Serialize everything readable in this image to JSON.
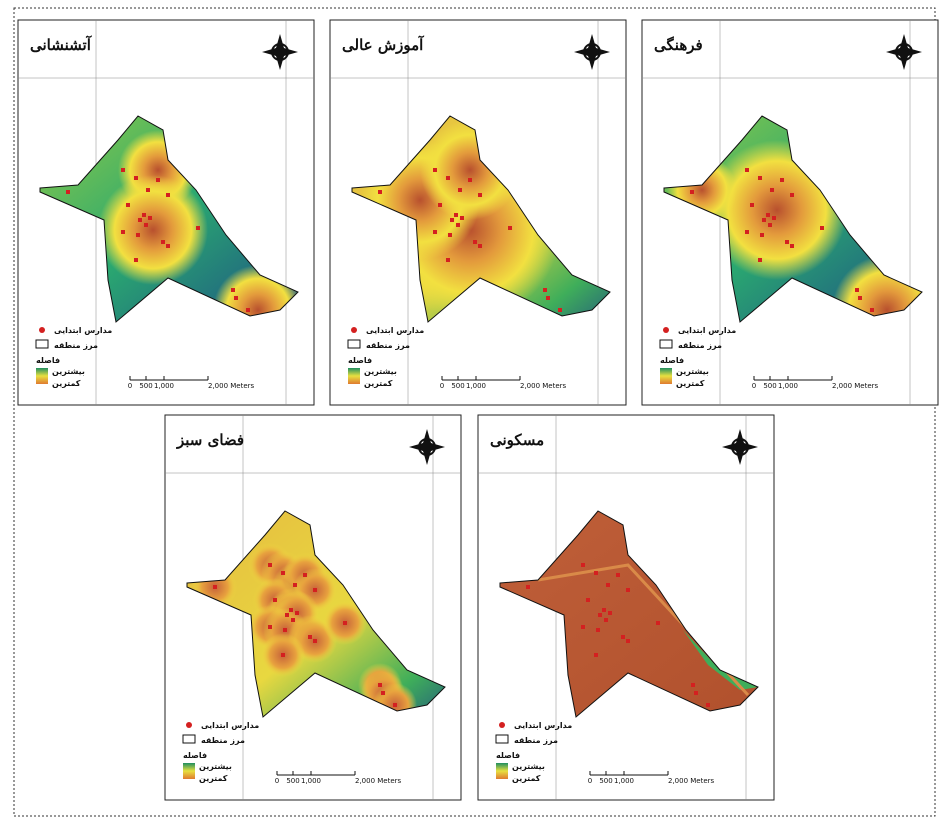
{
  "panels": [
    {
      "title": "آتشنشانی",
      "legend": {
        "schools": "مدارس ابتدایی",
        "boundary": "مرز منطقه",
        "distance": "فاصله",
        "high": "بیشترین",
        "low": "کمترین"
      },
      "scale": [
        "0",
        "500",
        "1,000",
        "2,000 Meters"
      ]
    },
    {
      "title": "آموزش عالی",
      "legend": {
        "schools": "مدارس ابتدایی",
        "boundary": "مرز منطقه",
        "distance": "فاصله",
        "high": "بیشترین",
        "low": "کمترین"
      },
      "scale": [
        "0",
        "500",
        "1,000",
        "2,000 Meters"
      ]
    },
    {
      "title": "فرهنگی",
      "legend": {
        "schools": "مدارس ابتدایی",
        "boundary": "مرز منطقه",
        "distance": "فاصله",
        "high": "بیشترین",
        "low": "کمترین"
      },
      "scale": [
        "0",
        "500",
        "1,000",
        "2,000 Meters"
      ]
    },
    {
      "title": "فضای سبز",
      "legend": {
        "schools": "مدارس ابتدایی",
        "boundary": "مرز منطقه",
        "distance": "فاصله",
        "high": "بیشترین",
        "low": "کمترین"
      },
      "scale": [
        "0",
        "500",
        "1,000",
        "2,000 Meters"
      ]
    },
    {
      "title": "مسکونی",
      "legend": {
        "schools": "مدارس ابتدایی",
        "boundary": "مرز منطقه",
        "distance": "فاصله",
        "high": "بیشترین",
        "low": "کمترین"
      },
      "scale": [
        "0",
        "500",
        "1,000",
        "2,000 Meters"
      ]
    }
  ]
}
